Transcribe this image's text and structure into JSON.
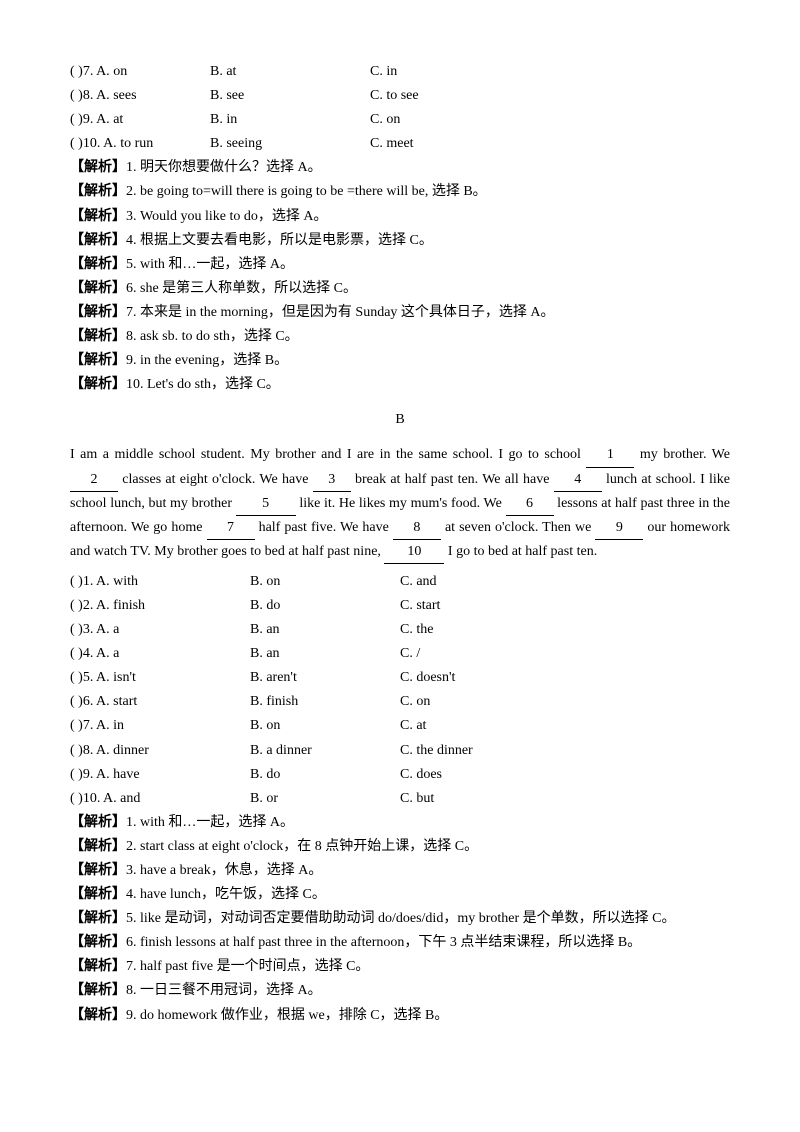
{
  "section_a": {
    "questions": [
      {
        "num": "7",
        "a": "on",
        "b": "at",
        "c": "in"
      },
      {
        "num": "8",
        "a": "sees",
        "b": "see",
        "c": "to see"
      },
      {
        "num": "9",
        "a": "at",
        "b": "in",
        "c": "on"
      },
      {
        "num": "10",
        "a": "to run",
        "b": "seeing",
        "c": "meet"
      }
    ],
    "analyses": [
      {
        "num": "1",
        "text": "明天你想要做什么？选择 A。"
      },
      {
        "num": "2",
        "text": "be going to=will   there is going to be =there will be, 选择 B。"
      },
      {
        "num": "3",
        "text": "Would you like to do，选择 A。"
      },
      {
        "num": "4",
        "text": "根据上文要去看电影，所以是电影票，选择 C。"
      },
      {
        "num": "5",
        "text": "with 和…一起，选择 A。"
      },
      {
        "num": "6",
        "text": "she 是第三人称单数，所以选择 C。"
      },
      {
        "num": "7",
        "text": "本来是 in the morning，但是因为有 Sunday 这个具体日子，选择 A。"
      },
      {
        "num": "8",
        "text": "ask sb. to do sth，选择 C。"
      },
      {
        "num": "9",
        "text": "in the evening，选择 B。"
      },
      {
        "num": "10",
        "text": "Let's do sth，选择 C。"
      }
    ]
  },
  "section_b": {
    "title": "B",
    "passage_parts": {
      "p1": "I am a middle school student. My brother and I are in the same school. I go to school ",
      "b1": "1",
      "p2": " my brother. We ",
      "b2": "2",
      "p3": " classes at eight o'clock. We have ",
      "b3": "3",
      "p4": " break at half past ten. We all have ",
      "b4": "4",
      "p5": " lunch at school. I like school lunch, but my brother ",
      "b5": "5",
      "p6": " like it. He likes my mum's food. We ",
      "b6": "6",
      "p7": " lessons at half past three in the afternoon. We go home ",
      "b7": "7",
      "p8": " half past five. We have ",
      "b8": "8",
      "p9": " at seven o'clock. Then we ",
      "b9": "9",
      "p10": " our homework and watch TV. My brother goes to bed at half past nine, ",
      "b10": "10",
      "p11": "  I go to bed at half past ten."
    },
    "questions": [
      {
        "num": "1",
        "a": "with",
        "b": "on",
        "c": "and"
      },
      {
        "num": "2",
        "a": "finish",
        "b": "do",
        "c": "start"
      },
      {
        "num": "3",
        "a": "a",
        "b": "an",
        "c": "the"
      },
      {
        "num": "4",
        "a": "a",
        "b": "an",
        "c": "/"
      },
      {
        "num": "5",
        "a": "isn't",
        "b": "aren't",
        "c": "doesn't"
      },
      {
        "num": "6",
        "a": "start",
        "b": "finish",
        "c": "on"
      },
      {
        "num": "7",
        "a": "in",
        "b": "on",
        "c": "at"
      },
      {
        "num": "8",
        "a": "dinner",
        "b": "a dinner",
        "c": "the dinner"
      },
      {
        "num": "9",
        "a": "have",
        "b": "do",
        "c": "does"
      },
      {
        "num": "10",
        "a": "and",
        "b": "or",
        "c": "but"
      }
    ],
    "analyses": [
      {
        "num": "1",
        "text": "with 和…一起，选择 A。"
      },
      {
        "num": "2",
        "text": "start class at eight o'clock，在 8 点钟开始上课，选择 C。"
      },
      {
        "num": "3",
        "text": "have a break，休息，选择 A。"
      },
      {
        "num": "4",
        "text": "have lunch，吃午饭，选择 C。"
      },
      {
        "num": "5",
        "text": "like 是动词，对动词否定要借助助动词 do/does/did，my brother 是个单数，所以选择 C。"
      },
      {
        "num": "6",
        "text": "finish lessons at half past three in the afternoon，下午 3 点半结束课程，所以选择 B。"
      },
      {
        "num": "7",
        "text": "half past five 是一个时间点，选择 C。"
      },
      {
        "num": "8",
        "text": "一日三餐不用冠词，选择 A。"
      },
      {
        "num": "9",
        "text": "do homework 做作业，根据 we，排除 C，选择 B。"
      }
    ]
  },
  "labels": {
    "analysis_prefix": "【解析】",
    "opt_a": "A. ",
    "opt_b": "B. ",
    "opt_c": "C. ",
    "paren_open": "(   )",
    "dot": ". "
  }
}
